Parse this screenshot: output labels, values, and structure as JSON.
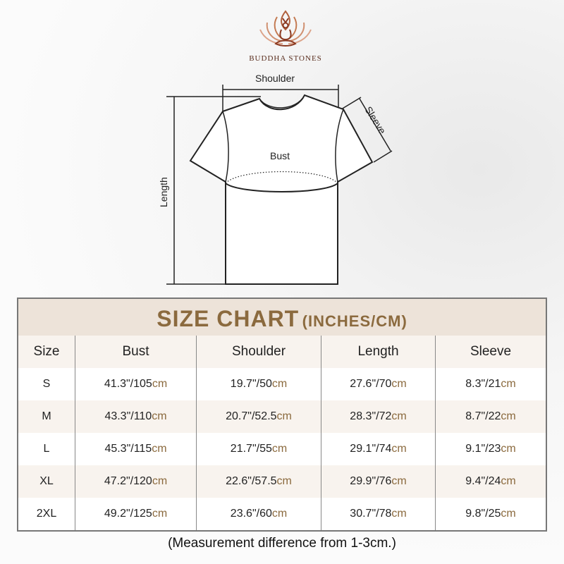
{
  "brand": {
    "name": "BUDDHA STONES",
    "logo_color": "#8b3a22"
  },
  "diagram": {
    "shoulder": "Shoulder",
    "sleeve": "Sleeve",
    "bust": "Bust",
    "length": "Length"
  },
  "table": {
    "title": "SIZE CHART",
    "title_units": "(INCHES/CM)",
    "accent_color": "#8b6a3e",
    "columns": [
      "Size",
      "Bust",
      "Shoulder",
      "Length",
      "Sleeve"
    ],
    "unit": "cm",
    "rows": [
      {
        "size": "S",
        "bust": "41.3\"/105",
        "shoulder": "19.7\"/50",
        "length": "27.6\"/70",
        "sleeve": "8.3\"/21"
      },
      {
        "size": "M",
        "bust": "43.3\"/110",
        "shoulder": "20.7\"/52.5",
        "length": "28.3\"/72",
        "sleeve": "8.7\"/22"
      },
      {
        "size": "L",
        "bust": "45.3\"/115",
        "shoulder": "21.7\"/55",
        "length": "29.1\"/74",
        "sleeve": "9.1\"/23"
      },
      {
        "size": "XL",
        "bust": "47.2\"/120",
        "shoulder": "22.6\"/57.5",
        "length": "29.9\"/76",
        "sleeve": "9.4\"/24"
      },
      {
        "size": "2XL",
        "bust": "49.2\"/125",
        "shoulder": "23.6\"/60",
        "length": "30.7\"/78",
        "sleeve": "9.8\"/25"
      }
    ]
  },
  "note": "(Measurement difference from 1-3cm.)"
}
